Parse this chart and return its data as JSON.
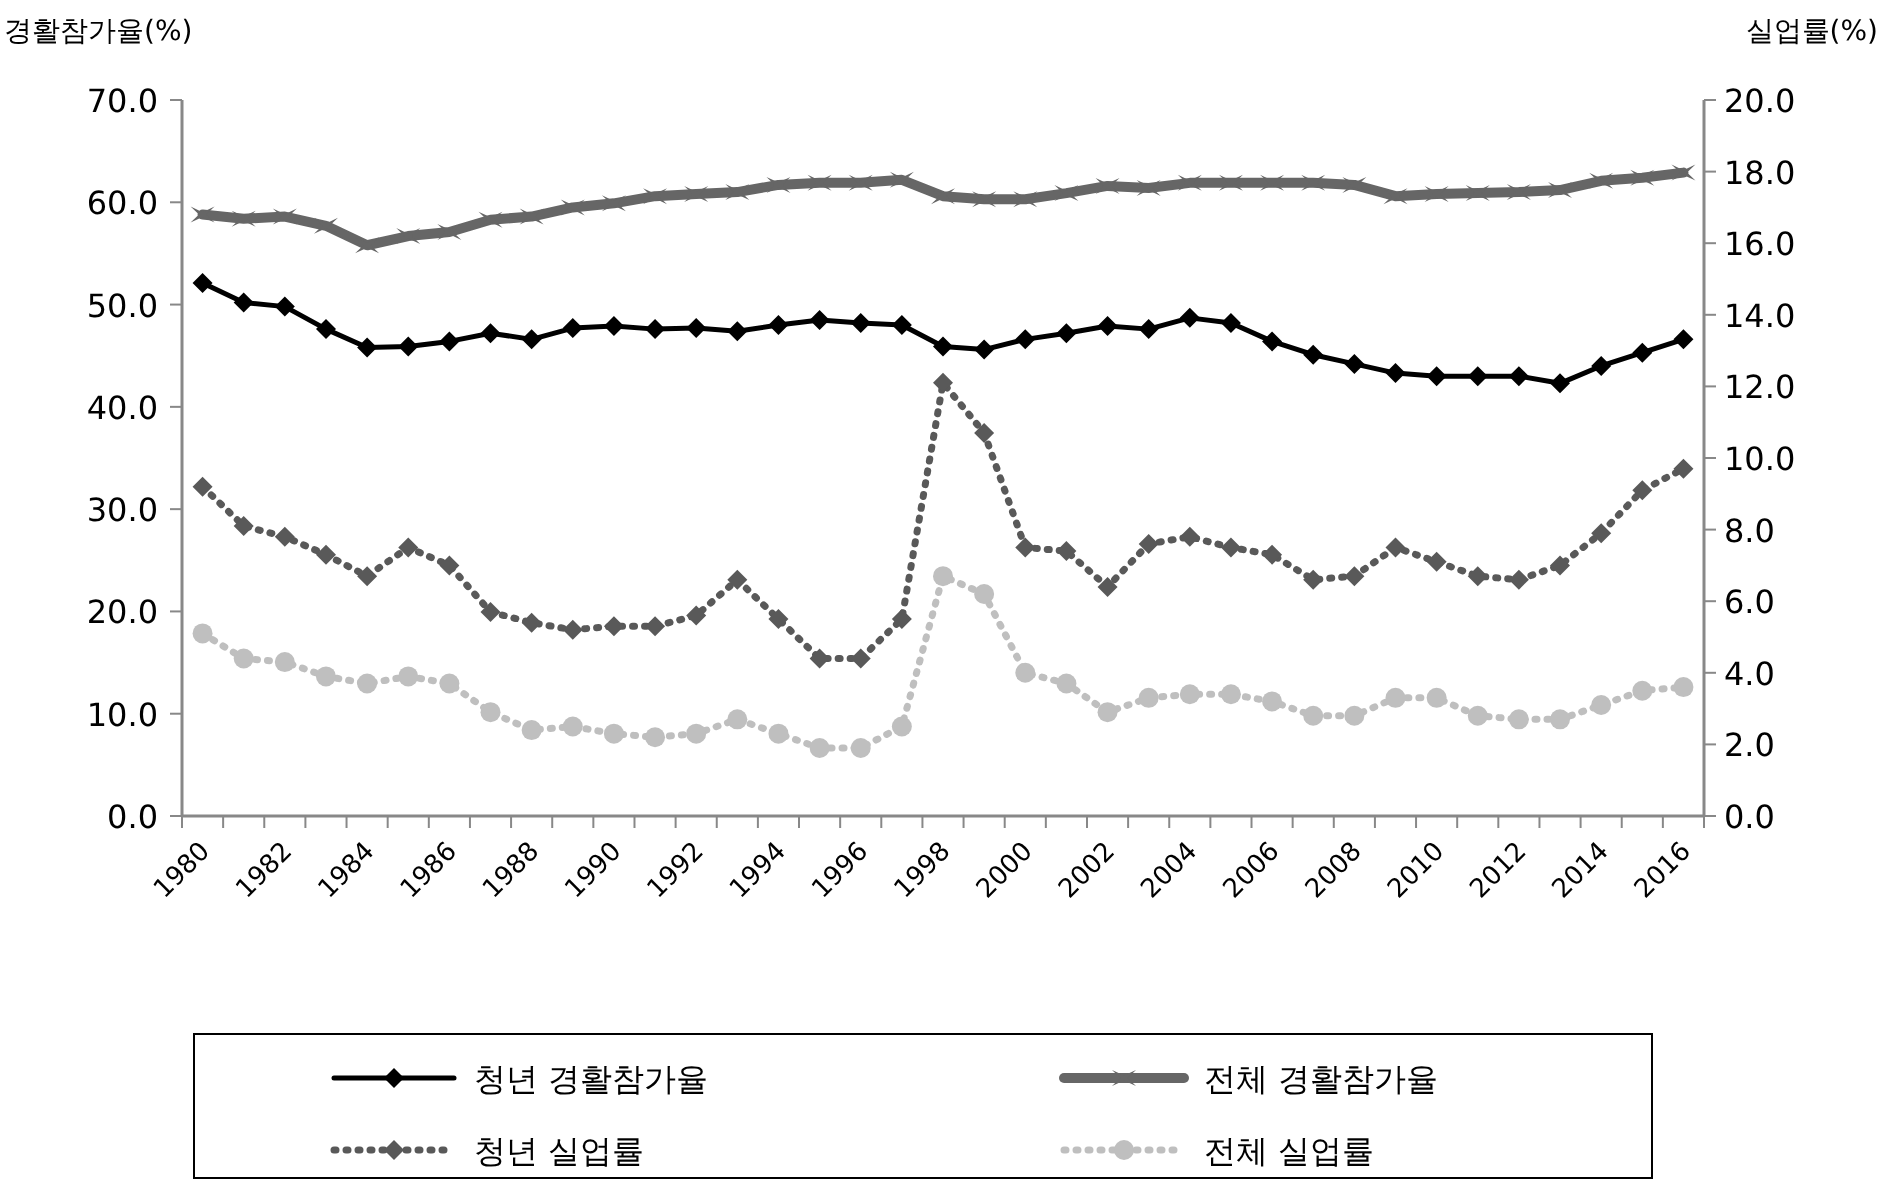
{
  "chart_data": {
    "type": "line",
    "ylabel": "경활참가율(%)",
    "y2label": "실업률(%)",
    "categories": [
      "1980",
      null,
      "1982",
      null,
      "1984",
      null,
      "1986",
      null,
      "1988",
      null,
      "1990",
      null,
      "1992",
      null,
      "1994",
      null,
      "1996",
      null,
      "1998",
      null,
      "2000",
      null,
      "2002",
      null,
      "2004",
      null,
      "2006",
      null,
      "2008",
      null,
      "2010",
      null,
      "2012",
      null,
      "2014",
      null,
      "2016"
    ],
    "ylim": [
      0,
      70
    ],
    "yticks": [
      {
        "value": 0,
        "label": "0.0"
      },
      {
        "value": 10,
        "label": "10.0"
      },
      {
        "value": 20,
        "label": "20.0"
      },
      {
        "value": 30,
        "label": "30.0"
      },
      {
        "value": 40,
        "label": "40.0"
      },
      {
        "value": 50,
        "label": "50.0"
      },
      {
        "value": 60,
        "label": "60.0"
      },
      {
        "value": 70,
        "label": "70.0"
      }
    ],
    "y2lim": [
      0,
      20
    ],
    "y2ticks": [
      {
        "value": 0,
        "label": "0.0"
      },
      {
        "value": 2,
        "label": "2.0"
      },
      {
        "value": 4,
        "label": "4.0"
      },
      {
        "value": 6,
        "label": "6.0"
      },
      {
        "value": 8,
        "label": "8.0"
      },
      {
        "value": 10,
        "label": "10.0"
      },
      {
        "value": 12,
        "label": "12.0"
      },
      {
        "value": 14,
        "label": "14.0"
      },
      {
        "value": 16,
        "label": "16.0"
      },
      {
        "value": 18,
        "label": "18.0"
      },
      {
        "value": 20,
        "label": "20.0"
      }
    ],
    "grid": false,
    "legend": "bottom",
    "series": [
      {
        "name": "청년 경활참가율",
        "color": "#000000",
        "marker": "diamond",
        "line_style": "solid",
        "values": [
          52.1,
          50.2,
          49.8,
          47.6,
          45.8,
          45.9,
          46.4,
          47.2,
          46.6,
          47.7,
          47.9,
          47.6,
          47.7,
          47.4,
          48.0,
          48.5,
          48.2,
          48.0,
          45.9,
          45.6,
          46.6,
          47.2,
          47.9,
          47.6,
          48.7,
          48.2,
          46.4,
          45.1,
          44.2,
          43.3,
          43.0,
          43.0,
          43.0,
          42.3,
          44.0,
          45.3,
          46.6
        ]
      },
      {
        "name": "전체 경활참가율",
        "color": "#666666",
        "marker": "cross",
        "line_style": "solid",
        "values": [
          58.8,
          58.4,
          58.6,
          57.7,
          55.8,
          56.7,
          57.1,
          58.3,
          58.6,
          59.5,
          59.9,
          60.6,
          60.8,
          61.0,
          61.7,
          61.9,
          61.9,
          62.2,
          60.6,
          60.3,
          60.3,
          60.9,
          61.6,
          61.4,
          61.9,
          61.9,
          61.9,
          61.9,
          61.7,
          60.6,
          60.8,
          60.9,
          61.0,
          61.2,
          62.1,
          62.4,
          62.9
        ]
      },
      {
        "name": "청년 실업률",
        "color": "#595959",
        "marker": "diamond",
        "line_style": "dotted",
        "axis": "y2",
        "values": [
          9.2,
          8.1,
          7.8,
          7.3,
          6.7,
          7.5,
          7.0,
          5.7,
          5.4,
          5.2,
          5.3,
          5.3,
          5.6,
          6.6,
          5.5,
          4.4,
          4.4,
          5.5,
          12.1,
          10.7,
          7.5,
          7.4,
          6.4,
          7.6,
          7.8,
          7.5,
          7.3,
          6.6,
          6.7,
          7.5,
          7.1,
          6.7,
          6.6,
          7.0,
          7.9,
          9.1,
          9.7
        ]
      },
      {
        "name": "전체 실업률",
        "color": "#bfbfbf",
        "marker": "circle",
        "line_style": "dotted",
        "axis": "y2",
        "values": [
          5.1,
          4.4,
          4.3,
          3.9,
          3.7,
          3.9,
          3.7,
          2.9,
          2.4,
          2.5,
          2.3,
          2.2,
          2.3,
          2.7,
          2.3,
          1.9,
          1.9,
          2.5,
          6.7,
          6.2,
          4.0,
          3.7,
          2.9,
          3.3,
          3.4,
          3.4,
          3.2,
          2.8,
          2.8,
          3.3,
          3.3,
          2.8,
          2.7,
          2.7,
          3.1,
          3.5,
          3.6
        ]
      }
    ]
  }
}
